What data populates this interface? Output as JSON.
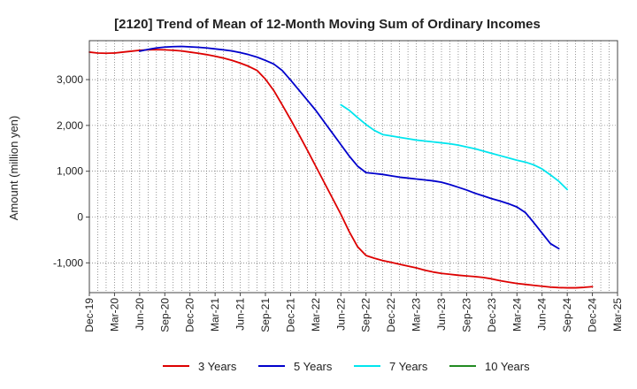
{
  "chart_data": {
    "type": "line",
    "title": "[2120]  Trend of Mean of 12-Month Moving Sum of Ordinary Incomes",
    "xlabel": "",
    "ylabel": "Amount (million yen)",
    "ylim": [
      -1650,
      3850
    ],
    "yticks": [
      3000,
      2000,
      1000,
      0,
      -1000
    ],
    "ytick_labels": [
      "3,000",
      "2,000",
      "1,000",
      "0",
      "-1,000"
    ],
    "x_labels": [
      "Dec-19",
      "Mar-20",
      "Jun-20",
      "Sep-20",
      "Dec-20",
      "Mar-21",
      "Jun-21",
      "Sep-21",
      "Dec-21",
      "Mar-22",
      "Jun-22",
      "Sep-22",
      "Dec-22",
      "Mar-23",
      "Jun-23",
      "Sep-23",
      "Dec-23",
      "Mar-24",
      "Jun-24",
      "Sep-24",
      "Dec-24",
      "Mar-25"
    ],
    "x_start": "Dec-19",
    "num_months": 63,
    "grid": true,
    "legend_position": "bottom",
    "series": [
      {
        "name": "3 Years",
        "color": "#dd0000",
        "start_month_index": 0,
        "values": [
          3600,
          3580,
          3575,
          3580,
          3600,
          3620,
          3640,
          3650,
          3655,
          3650,
          3640,
          3625,
          3600,
          3575,
          3545,
          3510,
          3470,
          3420,
          3360,
          3290,
          3200,
          3010,
          2760,
          2450,
          2130,
          1800,
          1460,
          1110,
          760,
          410,
          60,
          -320,
          -650,
          -840,
          -900,
          -950,
          -990,
          -1030,
          -1070,
          -1110,
          -1160,
          -1200,
          -1230,
          -1250,
          -1270,
          -1285,
          -1300,
          -1320,
          -1350,
          -1390,
          -1420,
          -1450,
          -1470,
          -1490,
          -1510,
          -1530,
          -1540,
          -1545,
          -1545,
          -1535,
          -1520
        ]
      },
      {
        "name": "5 Years",
        "color": "#0000cc",
        "start_month_index": 6,
        "values": [
          3620,
          3660,
          3690,
          3710,
          3720,
          3725,
          3715,
          3705,
          3690,
          3670,
          3650,
          3625,
          3590,
          3545,
          3490,
          3420,
          3340,
          3200,
          2990,
          2770,
          2550,
          2330,
          2080,
          1830,
          1580,
          1330,
          1110,
          970,
          950,
          930,
          900,
          870,
          850,
          830,
          810,
          790,
          760,
          710,
          650,
          590,
          520,
          460,
          400,
          350,
          290,
          220,
          100,
          -120,
          -350,
          -580,
          -690
        ]
      },
      {
        "name": "7 Years",
        "color": "#00e5ee",
        "start_month_index": 30,
        "values": [
          2450,
          2330,
          2170,
          2020,
          1890,
          1800,
          1770,
          1740,
          1710,
          1680,
          1660,
          1640,
          1620,
          1600,
          1570,
          1530,
          1490,
          1440,
          1390,
          1340,
          1290,
          1240,
          1200,
          1140,
          1050,
          920,
          780,
          600
        ]
      },
      {
        "name": "10 Years",
        "color": "#228b22",
        "start_month_index": 0,
        "values": []
      }
    ]
  }
}
